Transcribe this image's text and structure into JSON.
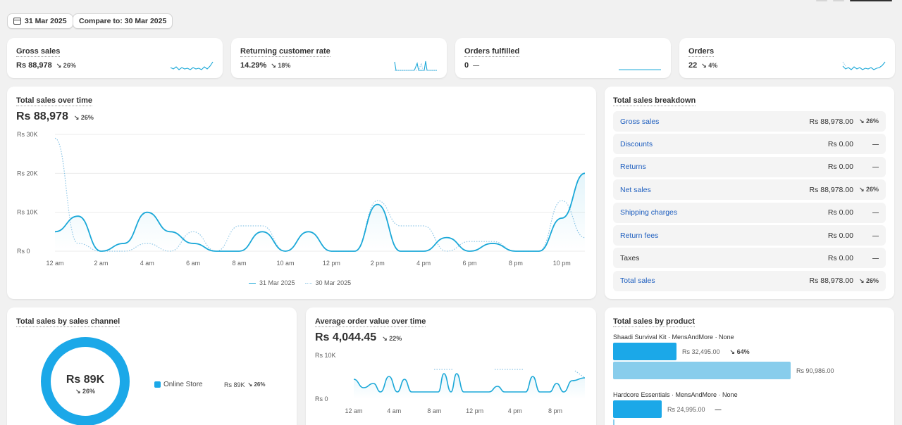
{
  "filters": {
    "date": "31 Mar 2025",
    "compare": "Compare to: 30 Mar 2025"
  },
  "kpis": [
    {
      "title": "Gross sales",
      "value": "Rs 88,978",
      "change": "↘ 26%"
    },
    {
      "title": "Returning customer rate",
      "value": "14.29%",
      "change": "↘ 18%"
    },
    {
      "title": "Orders fulfilled",
      "value": "0",
      "change": "—"
    },
    {
      "title": "Orders",
      "value": "22",
      "change": "↘ 4%"
    }
  ],
  "sales_over_time": {
    "title": "Total sales over time",
    "value": "Rs 88,978",
    "change": "↘ 26%",
    "legend": {
      "current": "31 Mar 2025",
      "previous": "30 Mar 2025"
    }
  },
  "breakdown": {
    "title": "Total sales breakdown",
    "rows": [
      {
        "label": "Gross sales",
        "amount": "Rs 88,978.00",
        "change": "↘ 26%",
        "link": true
      },
      {
        "label": "Discounts",
        "amount": "Rs 0.00",
        "change": "—",
        "link": true
      },
      {
        "label": "Returns",
        "amount": "Rs 0.00",
        "change": "—",
        "link": true
      },
      {
        "label": "Net sales",
        "amount": "Rs 88,978.00",
        "change": "↘ 26%",
        "link": true
      },
      {
        "label": "Shipping charges",
        "amount": "Rs 0.00",
        "change": "—",
        "link": true
      },
      {
        "label": "Return fees",
        "amount": "Rs 0.00",
        "change": "—",
        "link": true
      },
      {
        "label": "Taxes",
        "amount": "Rs 0.00",
        "change": "—",
        "link": false
      },
      {
        "label": "Total sales",
        "amount": "Rs 88,978.00",
        "change": "↘ 26%",
        "link": true
      }
    ]
  },
  "channel": {
    "title": "Total sales by sales channel",
    "center_value": "Rs 89K",
    "center_change": "↘ 26%",
    "rows": [
      {
        "name": "Online Store",
        "value": "Rs 89K",
        "change": "↘ 26%"
      }
    ]
  },
  "aov": {
    "title": "Average order value over time",
    "value": "Rs 4,044.45",
    "change": "↘ 22%"
  },
  "products": {
    "title": "Total sales by product",
    "items": [
      {
        "name": "Shaadi Survival Kit · MensAndMore · None",
        "current": "Rs 32,495.00",
        "change": "↘ 64%",
        "previous": "Rs 90,986.00"
      },
      {
        "name": "Hardcore Essentials · MensAndMore · None",
        "current": "Rs 24,995.00",
        "change": "—"
      }
    ]
  },
  "colors": {
    "primary": "#1ba8d8",
    "comparison": "#8ec6e6",
    "link": "#1f5fbf"
  },
  "chart_data": [
    {
      "type": "line",
      "name": "Total sales over time",
      "x": [
        "12 am",
        "1 am",
        "2 am",
        "3 am",
        "4 am",
        "5 am",
        "6 am",
        "7 am",
        "8 am",
        "9 am",
        "10 am",
        "11 am",
        "12 pm",
        "1 pm",
        "2 pm",
        "3 pm",
        "4 pm",
        "5 pm",
        "6 pm",
        "7 pm",
        "8 pm",
        "9 pm",
        "10 pm",
        "11 pm"
      ],
      "x_tick_labels": [
        "12 am",
        "2 am",
        "4 am",
        "6 am",
        "8 am",
        "10 am",
        "12 pm",
        "2 pm",
        "4 pm",
        "6 pm",
        "8 pm",
        "10 pm"
      ],
      "y_tick_labels": [
        "Rs 0",
        "Rs 10K",
        "Rs 20K",
        "Rs 30K"
      ],
      "ylim": [
        0,
        30000
      ],
      "series": [
        {
          "name": "31 Mar 2025",
          "values": [
            5000,
            9000,
            0,
            2000,
            10000,
            5000,
            2000,
            0,
            0,
            5000,
            0,
            5000,
            0,
            0,
            12000,
            0,
            0,
            3500,
            0,
            2000,
            0,
            0,
            8500,
            20000
          ]
        },
        {
          "name": "30 Mar 2025",
          "values": [
            29000,
            2000,
            0,
            0,
            2000,
            0,
            5000,
            0,
            6500,
            6500,
            0,
            5000,
            0,
            0,
            13000,
            6500,
            6500,
            0,
            2500,
            2500,
            0,
            0,
            13000,
            3500
          ]
        }
      ]
    },
    {
      "type": "line",
      "name": "Average order value over time",
      "x_tick_labels": [
        "12 am",
        "4 am",
        "8 am",
        "12 pm",
        "4 pm",
        "8 pm"
      ],
      "y_tick_labels": [
        "Rs 0",
        "Rs 10K"
      ],
      "ylim": [
        0,
        10000
      ]
    },
    {
      "type": "pie",
      "name": "Total sales by sales channel",
      "categories": [
        "Online Store"
      ],
      "values": [
        88978
      ]
    },
    {
      "type": "bar",
      "name": "Total sales by product",
      "categories": [
        "Shaadi Survival Kit · MensAndMore · None",
        "Hardcore Essentials · MensAndMore · None"
      ],
      "series": [
        {
          "name": "31 Mar 2025",
          "values": [
            32495,
            24995
          ]
        },
        {
          "name": "30 Mar 2025",
          "values": [
            90986,
            null
          ]
        }
      ]
    }
  ]
}
